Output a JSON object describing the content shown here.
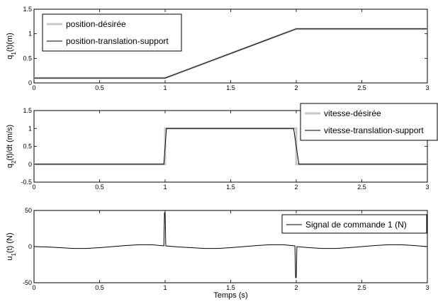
{
  "chart_data": [
    {
      "type": "line",
      "ylabel_main": "q",
      "ylabel_sub": "1",
      "ylabel_rest": "(t)(m)",
      "xlim": [
        0,
        3
      ],
      "ylim": [
        0,
        1.5
      ],
      "xticks": [
        "0",
        "0.5",
        "1",
        "1.5",
        "2",
        "2.5",
        "3"
      ],
      "yticks": [
        "0",
        "0.5",
        "1",
        "1.5"
      ],
      "legend_position": "top-left",
      "series": [
        {
          "name": "position-désirée",
          "color": "#c8c8c8",
          "x": [
            0,
            1,
            2,
            3
          ],
          "y": [
            0.1,
            0.1,
            1.1,
            1.1
          ]
        },
        {
          "name": "position-translation-support",
          "color": "#000000",
          "x": [
            0,
            1,
            2,
            3
          ],
          "y": [
            0.1,
            0.1,
            1.1,
            1.1
          ]
        }
      ]
    },
    {
      "type": "line",
      "ylabel_main": "q",
      "ylabel_sub": "2",
      "ylabel_rest": "(t)/dt (m/s)",
      "xlim": [
        0,
        3
      ],
      "ylim": [
        -0.5,
        1.5
      ],
      "xticks": [
        "0",
        "0.5",
        "1",
        "1.5",
        "2",
        "2.5",
        "3"
      ],
      "yticks": [
        "-0.5",
        "0",
        "0.5",
        "1",
        "1.5"
      ],
      "legend_position": "top-right",
      "series": [
        {
          "name": "vitesse-désirée",
          "color": "#c8c8c8",
          "x": [
            0,
            1,
            1,
            2,
            2,
            3
          ],
          "y": [
            0,
            0,
            1,
            1,
            0,
            0
          ]
        },
        {
          "name": "vitesse-translation-support",
          "color": "#000000",
          "x": [
            0,
            0.99,
            1.01,
            1.98,
            2.02,
            3
          ],
          "y": [
            0,
            0,
            1,
            1,
            0,
            0
          ]
        }
      ]
    },
    {
      "type": "line",
      "ylabel_main": "u",
      "ylabel_sub": "1",
      "ylabel_rest": "(t) (N)",
      "xlabel": "Temps (s)",
      "xlim": [
        0,
        3
      ],
      "ylim": [
        -50,
        50
      ],
      "xticks": [
        "0",
        "0.5",
        "1",
        "1.5",
        "2",
        "2.5",
        "3"
      ],
      "yticks": [
        "-50",
        "0",
        "50"
      ],
      "legend_position": "top-right",
      "series": [
        {
          "name": "Signal de commande 1 (N)",
          "color": "#000000",
          "x": [
            0,
            0.1,
            0.2,
            0.3,
            0.4,
            0.5,
            0.6,
            0.7,
            0.8,
            0.9,
            0.99,
            0.995,
            1.0,
            1.005,
            1.1,
            1.2,
            1.3,
            1.4,
            1.5,
            1.6,
            1.7,
            1.8,
            1.9,
            1.99,
            1.995,
            2.0,
            2.005,
            2.1,
            2.2,
            2.3,
            2.4,
            2.5,
            2.6,
            2.7,
            2.8,
            2.9,
            3.0
          ],
          "y": [
            0,
            -0.5,
            -1.5,
            -2.5,
            -2.5,
            -1.5,
            0,
            1.5,
            2.5,
            2.5,
            1,
            47,
            47,
            1,
            -0.5,
            -1.5,
            -2.5,
            -2.5,
            -1.5,
            0,
            1.5,
            2.5,
            2.5,
            1,
            -43,
            -43,
            0,
            -1.5,
            -2.5,
            -2.5,
            -1.5,
            0,
            1.5,
            2.5,
            2.5,
            1.5,
            0
          ]
        }
      ]
    }
  ]
}
